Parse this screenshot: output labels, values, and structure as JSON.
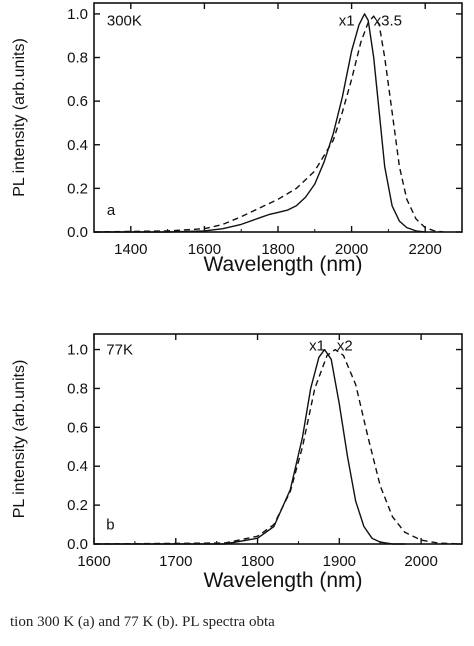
{
  "caption": "tion 300 K (a) and 77 K (b). PL spectra obta",
  "chart_data": [
    {
      "type": "line",
      "xlabel": "Wavelength (nm)",
      "ylabel": "PL intensity (arb.units)",
      "xlim": [
        1300,
        2300
      ],
      "ylim": [
        0,
        1.05
      ],
      "xticks": [
        1400,
        1600,
        1800,
        2000,
        2200
      ],
      "yticks": [
        0.0,
        0.2,
        0.4,
        0.6,
        0.8,
        1.0
      ],
      "grid": false,
      "annotations": [
        {
          "text": "300K",
          "x": 1335,
          "y": 0.97
        },
        {
          "text": "a",
          "x": 1335,
          "y": 0.1
        },
        {
          "text": "x1",
          "x": 1965,
          "y": 0.97
        },
        {
          "text": "x3.5",
          "x": 2060,
          "y": 0.97
        }
      ],
      "series": [
        {
          "style": "solid",
          "x": [
            1300,
            1500,
            1600,
            1650,
            1700,
            1750,
            1775,
            1800,
            1825,
            1850,
            1875,
            1900,
            1925,
            1950,
            1975,
            2000,
            2020,
            2035,
            2045,
            2060,
            2075,
            2090,
            2110,
            2130,
            2150,
            2175,
            2200
          ],
          "y": [
            0.0,
            0.0,
            0.005,
            0.015,
            0.035,
            0.065,
            0.08,
            0.09,
            0.1,
            0.12,
            0.16,
            0.22,
            0.32,
            0.45,
            0.62,
            0.83,
            0.95,
            1.0,
            0.97,
            0.8,
            0.55,
            0.3,
            0.12,
            0.05,
            0.02,
            0.005,
            0.0
          ]
        },
        {
          "style": "dashed",
          "x": [
            1300,
            1500,
            1600,
            1650,
            1700,
            1750,
            1800,
            1850,
            1900,
            1950,
            1975,
            2000,
            2025,
            2045,
            2060,
            2075,
            2090,
            2110,
            2130,
            2150,
            2175,
            2200,
            2225,
            2250
          ],
          "y": [
            0.0,
            0.005,
            0.015,
            0.035,
            0.07,
            0.11,
            0.15,
            0.2,
            0.28,
            0.42,
            0.55,
            0.7,
            0.87,
            0.96,
            0.99,
            0.95,
            0.8,
            0.55,
            0.3,
            0.15,
            0.06,
            0.02,
            0.005,
            0.0
          ]
        }
      ]
    },
    {
      "type": "line",
      "xlabel": "Wavelength (nm)",
      "ylabel": "PL intensity (arb.units)",
      "xlim": [
        1600,
        2050
      ],
      "ylim": [
        0,
        1.08
      ],
      "xticks": [
        1600,
        1700,
        1800,
        1900,
        2000
      ],
      "yticks": [
        0.0,
        0.2,
        0.4,
        0.6,
        0.8,
        1.0
      ],
      "grid": false,
      "annotations": [
        {
          "text": "77K",
          "x": 1615,
          "y": 1.0
        },
        {
          "text": "b",
          "x": 1615,
          "y": 0.1
        },
        {
          "text": "x1",
          "x": 1863,
          "y": 1.02
        },
        {
          "text": "x2",
          "x": 1897,
          "y": 1.02
        }
      ],
      "series": [
        {
          "style": "solid",
          "x": [
            1600,
            1760,
            1800,
            1820,
            1840,
            1855,
            1865,
            1875,
            1882,
            1890,
            1900,
            1910,
            1920,
            1930,
            1940,
            1950,
            1965,
            1980
          ],
          "y": [
            0.0,
            0.0,
            0.03,
            0.09,
            0.28,
            0.55,
            0.8,
            0.96,
            1.0,
            0.95,
            0.72,
            0.45,
            0.22,
            0.09,
            0.03,
            0.01,
            0.0,
            0.0
          ]
        },
        {
          "style": "dashed",
          "x": [
            1600,
            1760,
            1800,
            1820,
            1840,
            1855,
            1870,
            1885,
            1895,
            1905,
            1920,
            1935,
            1950,
            1965,
            1980,
            2000,
            2020,
            2050
          ],
          "y": [
            0.0,
            0.005,
            0.04,
            0.1,
            0.27,
            0.5,
            0.8,
            0.97,
            1.0,
            0.97,
            0.82,
            0.55,
            0.3,
            0.14,
            0.06,
            0.02,
            0.005,
            0.0
          ]
        }
      ]
    }
  ]
}
